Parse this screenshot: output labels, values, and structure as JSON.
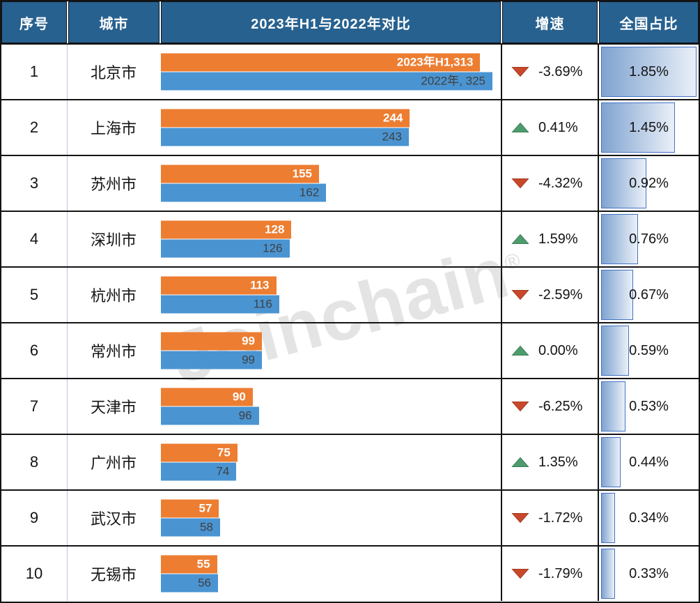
{
  "table": {
    "headers": {
      "index": "序号",
      "city": "城市",
      "comparison": "2023年H1与2022年对比",
      "growth": "增速",
      "share": "全国占比"
    },
    "share_max": 1.85,
    "rows": [
      {
        "index": "1",
        "city": "北京市",
        "v2023": 313,
        "v2022": 325,
        "label_2023": "2023年H1,313",
        "label_2022": "2022年, 325",
        "growth": "-3.69%",
        "growth_dir": "down",
        "share": "1.85%",
        "share_value": 1.85
      },
      {
        "index": "2",
        "city": "上海市",
        "v2023": 244,
        "v2022": 243,
        "label_2023": "244",
        "label_2022": "243",
        "growth": "0.41%",
        "growth_dir": "up",
        "share": "1.45%",
        "share_value": 1.45
      },
      {
        "index": "3",
        "city": "苏州市",
        "v2023": 155,
        "v2022": 162,
        "label_2023": "155",
        "label_2022": "162",
        "growth": "-4.32%",
        "growth_dir": "down",
        "share": "0.92%",
        "share_value": 0.92
      },
      {
        "index": "4",
        "city": "深圳市",
        "v2023": 128,
        "v2022": 126,
        "label_2023": "128",
        "label_2022": "126",
        "growth": "1.59%",
        "growth_dir": "up",
        "share": "0.76%",
        "share_value": 0.76
      },
      {
        "index": "5",
        "city": "杭州市",
        "v2023": 113,
        "v2022": 116,
        "label_2023": "113",
        "label_2022": "116",
        "growth": "-2.59%",
        "growth_dir": "down",
        "share": "0.67%",
        "share_value": 0.67
      },
      {
        "index": "6",
        "city": "常州市",
        "v2023": 99,
        "v2022": 99,
        "label_2023": "99",
        "label_2022": "99",
        "growth": "0.00%",
        "growth_dir": "up",
        "share": "0.59%",
        "share_value": 0.59
      },
      {
        "index": "7",
        "city": "天津市",
        "v2023": 90,
        "v2022": 96,
        "label_2023": "90",
        "label_2022": "96",
        "growth": "-6.25%",
        "growth_dir": "down",
        "share": "0.53%",
        "share_value": 0.53
      },
      {
        "index": "8",
        "city": "广州市",
        "v2023": 75,
        "v2022": 74,
        "label_2023": "75",
        "label_2022": "74",
        "growth": "1.35%",
        "growth_dir": "up",
        "share": "0.44%",
        "share_value": 0.44
      },
      {
        "index": "9",
        "city": "武汉市",
        "v2023": 57,
        "v2022": 58,
        "label_2023": "57",
        "label_2022": "58",
        "growth": "-1.72%",
        "growth_dir": "down",
        "share": "0.34%",
        "share_value": 0.34
      },
      {
        "index": "10",
        "city": "无锡市",
        "v2023": 55,
        "v2022": 56,
        "label_2023": "55",
        "label_2022": "56",
        "growth": "-1.79%",
        "growth_dir": "down",
        "share": "0.33%",
        "share_value": 0.33
      }
    ]
  },
  "watermark": {
    "text": "Joinchain",
    "registered": "®"
  },
  "colors": {
    "header_bg": "#27618F",
    "bar_2023": "#ED7D31",
    "bar_2022": "#4A94D2",
    "growth_up": "#4E9C6E",
    "growth_down": "#C9482B",
    "share_border": "#4472C4",
    "share_left": "#7FA3D0",
    "share_right": "#EAF0F8"
  },
  "chart_data": {
    "type": "bar",
    "orientation": "horizontal",
    "title": "2023年H1与2022年对比",
    "categories": [
      "北京市",
      "上海市",
      "苏州市",
      "深圳市",
      "杭州市",
      "常州市",
      "天津市",
      "广州市",
      "武汉市",
      "无锡市"
    ],
    "series": [
      {
        "name": "2023年H1",
        "values": [
          313,
          244,
          155,
          128,
          113,
          99,
          90,
          75,
          57,
          55
        ]
      },
      {
        "name": "2022年",
        "values": [
          325,
          243,
          162,
          126,
          116,
          99,
          96,
          74,
          58,
          56
        ]
      }
    ],
    "growth_pct": [
      -3.69,
      0.41,
      -4.32,
      1.59,
      -2.59,
      0.0,
      -6.25,
      1.35,
      -1.72,
      -1.79
    ],
    "national_share_pct": [
      1.85,
      1.45,
      0.92,
      0.76,
      0.67,
      0.59,
      0.53,
      0.44,
      0.34,
      0.33
    ],
    "xlim": [
      0,
      325
    ],
    "legend_position": "none",
    "grid": false
  }
}
